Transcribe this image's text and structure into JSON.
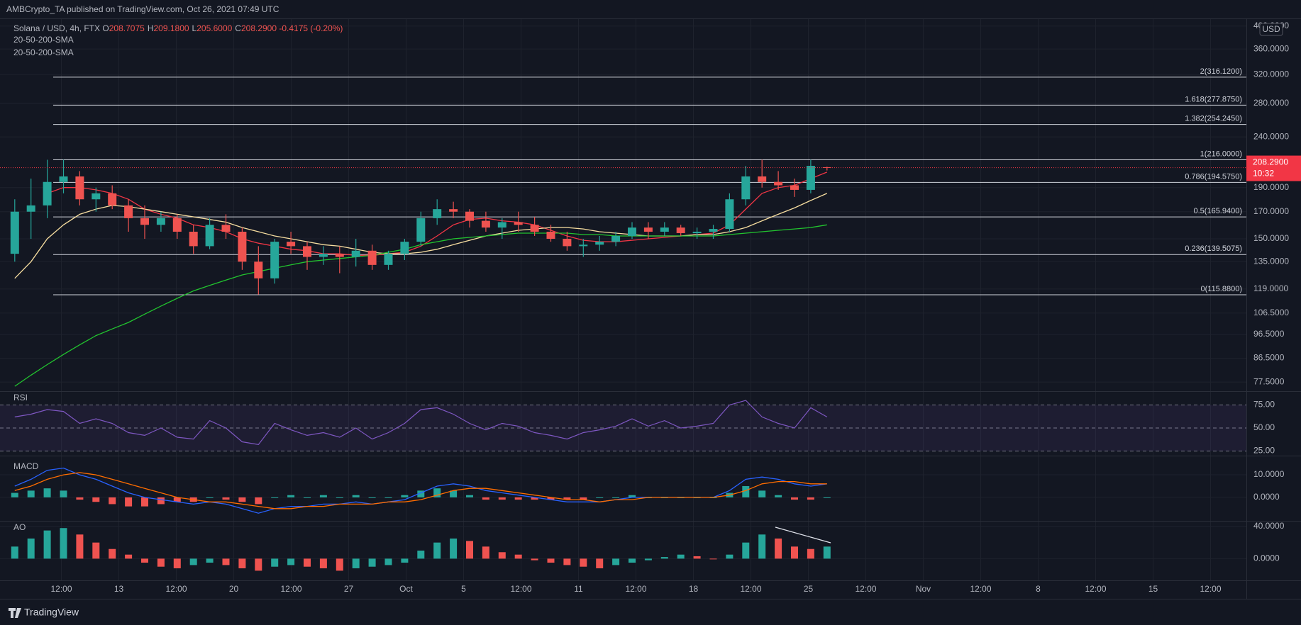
{
  "header": {
    "text": "AMBCrypto_TA published on TradingView.com, Oct 26, 2021 07:49 UTC"
  },
  "chart_data": {
    "type": "candlestick",
    "symbol": "Solana / USD, 4h, FTX",
    "ohlc_legend": [
      "O",
      "208.7075",
      "H",
      "209.1800",
      "L",
      "205.6000",
      "C",
      "208.2900"
    ],
    "change": "-0.4175 (-0.20%)",
    "indicator_legend": [
      "20-50-200-SMA",
      "20-50-200-SMA"
    ],
    "up_color": "#26a69a",
    "down_color": "#ef5350",
    "candles": [
      [
        140,
        180,
        135,
        170
      ],
      [
        170,
        198,
        150,
        175
      ],
      [
        175,
        216,
        165,
        195
      ],
      [
        195,
        216,
        185,
        200
      ],
      [
        200,
        205,
        175,
        180
      ],
      [
        180,
        190,
        170,
        185
      ],
      [
        185,
        192,
        172,
        175
      ],
      [
        175,
        180,
        155,
        165
      ],
      [
        165,
        175,
        150,
        160
      ],
      [
        160,
        170,
        155,
        165
      ],
      [
        165,
        168,
        150,
        155
      ],
      [
        155,
        160,
        140,
        145
      ],
      [
        145,
        165,
        143,
        160
      ],
      [
        160,
        168,
        150,
        155
      ],
      [
        155,
        158,
        130,
        135
      ],
      [
        135,
        145,
        116,
        125
      ],
      [
        125,
        150,
        122,
        148
      ],
      [
        148,
        155,
        140,
        145
      ],
      [
        145,
        148,
        130,
        138
      ],
      [
        138,
        145,
        133,
        140
      ],
      [
        140,
        145,
        128,
        138
      ],
      [
        138,
        150,
        132,
        142
      ],
      [
        142,
        146,
        130,
        133
      ],
      [
        133,
        142,
        130,
        140
      ],
      [
        140,
        150,
        136,
        148
      ],
      [
        148,
        170,
        145,
        165
      ],
      [
        165,
        180,
        160,
        172
      ],
      [
        172,
        178,
        165,
        170
      ],
      [
        170,
        172,
        158,
        163
      ],
      [
        163,
        170,
        155,
        158
      ],
      [
        158,
        165,
        150,
        162
      ],
      [
        162,
        170,
        155,
        160
      ],
      [
        160,
        166,
        152,
        155
      ],
      [
        155,
        160,
        148,
        150
      ],
      [
        150,
        155,
        142,
        145
      ],
      [
        145,
        150,
        138,
        146
      ],
      [
        146,
        152,
        142,
        148
      ],
      [
        148,
        155,
        145,
        152
      ],
      [
        152,
        162,
        150,
        158
      ],
      [
        158,
        162,
        150,
        155
      ],
      [
        155,
        162,
        152,
        158
      ],
      [
        158,
        160,
        152,
        154
      ],
      [
        154,
        158,
        150,
        155
      ],
      [
        155,
        160,
        150,
        157
      ],
      [
        157,
        185,
        155,
        180
      ],
      [
        180,
        210,
        175,
        200
      ],
      [
        200,
        216,
        190,
        195
      ],
      [
        195,
        205,
        188,
        192
      ],
      [
        192,
        198,
        182,
        188
      ],
      [
        188,
        216,
        185,
        210
      ],
      [
        208.7075,
        209.18,
        205.6,
        208.29
      ]
    ],
    "sma": [
      {
        "color": "#f23645",
        "values": [
          null,
          null,
          185,
          190,
          190,
          188,
          185,
          180,
          172,
          168,
          165,
          160,
          158,
          155,
          150,
          147,
          145,
          143,
          142,
          140,
          140,
          139,
          139,
          140,
          141,
          145,
          152,
          160,
          164,
          165,
          163,
          162,
          160,
          156,
          152,
          149,
          148,
          148,
          149,
          150,
          151,
          152,
          153,
          154,
          160,
          172,
          185,
          190,
          192,
          198,
          204
        ]
      },
      {
        "color": "#f7dea0",
        "values": [
          125,
          135,
          150,
          160,
          168,
          172,
          175,
          174,
          172,
          170,
          168,
          166,
          164,
          162,
          158,
          155,
          152,
          150,
          148,
          146,
          145,
          143,
          141,
          140,
          140,
          141,
          143,
          146,
          149,
          152,
          154,
          156,
          157,
          158,
          158,
          157,
          155,
          154,
          153,
          152,
          152,
          152,
          153,
          153,
          155,
          158,
          163,
          168,
          173,
          179,
          185
        ]
      },
      {
        "color": "#22c42f",
        "values": [
          76,
          80,
          84,
          88,
          92,
          96,
          99,
          102,
          106,
          110,
          114,
          118,
          121,
          124,
          127,
          129,
          131,
          133,
          135,
          136,
          137,
          138,
          139,
          141,
          143,
          146,
          148,
          150,
          151,
          152,
          153,
          154,
          154,
          154,
          154,
          153,
          153,
          152,
          152,
          152,
          152,
          152,
          152,
          152,
          153,
          154,
          155,
          156,
          157,
          158,
          160
        ]
      }
    ],
    "log_scale": true,
    "ylim": [
      74.3,
      414.5
    ],
    "yticks": [
      {
        "value": 400,
        "label": "400.0000"
      },
      {
        "value": 360,
        "label": "360.0000"
      },
      {
        "value": 320,
        "label": "320.0000"
      },
      {
        "value": 280,
        "label": "280.0000"
      },
      {
        "value": 240,
        "label": "240.0000"
      },
      {
        "value": 190,
        "label": "190.0000"
      },
      {
        "value": 170,
        "label": "170.0000"
      },
      {
        "value": 150,
        "label": "150.0000"
      },
      {
        "value": 135,
        "label": "135.0000"
      },
      {
        "value": 119,
        "label": "119.0000"
      },
      {
        "value": 106.5,
        "label": "106.5000"
      },
      {
        "value": 96.5,
        "label": "96.5000"
      },
      {
        "value": 86.5,
        "label": "86.5000"
      },
      {
        "value": 77.5,
        "label": "77.5000"
      }
    ],
    "grid": true,
    "currency": "USD",
    "last_price": {
      "value": 208.29,
      "label": "208.2900"
    },
    "countdown": "10:32",
    "fib_levels": [
      {
        "value": 316.12,
        "label": "2(316.1200)"
      },
      {
        "value": 277.875,
        "label": "1.618(277.8750)"
      },
      {
        "value": 254.245,
        "label": "1.382(254.2450)"
      },
      {
        "value": 216,
        "label": "1(216.0000)"
      },
      {
        "value": 194.575,
        "label": "0.786(194.5750)"
      },
      {
        "value": 165.94,
        "label": "0.5(165.9400)"
      },
      {
        "value": 139.5075,
        "label": "0.236(139.5075)"
      },
      {
        "value": 115.88,
        "label": "0(115.8800)"
      }
    ],
    "x_labels": [
      "12:00",
      "13",
      "12:00",
      "20",
      "12:00",
      "27",
      "Oct",
      "5",
      "12:00",
      "11",
      "12:00",
      "18",
      "12:00",
      "25",
      "12:00",
      "Nov",
      "12:00",
      "8",
      "12:00",
      "15",
      "12:00"
    ],
    "rsi": {
      "title": "RSI",
      "color": "#7e57c2",
      "values": [
        62,
        65,
        70,
        68,
        55,
        60,
        55,
        45,
        42,
        50,
        40,
        38,
        58,
        50,
        35,
        32,
        55,
        48,
        42,
        45,
        40,
        50,
        38,
        45,
        55,
        70,
        72,
        65,
        55,
        48,
        55,
        52,
        45,
        42,
        38,
        45,
        48,
        52,
        60,
        52,
        58,
        50,
        52,
        55,
        75,
        80,
        62,
        55,
        50,
        72,
        62
      ],
      "ylim": [
        20,
        90
      ],
      "yticks": [
        {
          "value": 75,
          "label": "75.00"
        },
        {
          "value": 50,
          "label": "50.00"
        },
        {
          "value": 25,
          "label": "25.00"
        }
      ]
    },
    "macd": {
      "title": "MACD",
      "series": [
        {
          "color": "#2962ff",
          "values": [
            5,
            8,
            12,
            13,
            10,
            8,
            5,
            2,
            0,
            -1,
            -2,
            -3,
            -2,
            -3,
            -5,
            -7,
            -5,
            -4,
            -4,
            -3,
            -3,
            -2,
            -3,
            -2,
            -1,
            2,
            5,
            6,
            5,
            3,
            2,
            1,
            0,
            -1,
            -2,
            -2,
            -2,
            -1,
            0,
            0,
            0,
            0,
            0,
            0,
            3,
            8,
            9,
            8,
            6,
            5,
            6
          ]
        },
        {
          "color": "#ff6d00",
          "values": [
            3,
            5,
            8,
            10,
            11,
            10,
            8,
            6,
            4,
            2,
            0,
            -1,
            -2,
            -2,
            -3,
            -4,
            -5,
            -5,
            -4,
            -4,
            -3,
            -3,
            -3,
            -2,
            -2,
            -1,
            1,
            3,
            4,
            4,
            3,
            2,
            1,
            0,
            -1,
            -1,
            -2,
            -1,
            -1,
            0,
            0,
            0,
            0,
            0,
            1,
            3,
            6,
            7,
            7,
            6,
            6
          ]
        }
      ],
      "histogram": [
        2,
        3,
        4,
        3,
        -1,
        -2,
        -3,
        -4,
        -4,
        -3,
        -2,
        -2,
        0,
        -1,
        -2,
        -3,
        0,
        1,
        0,
        1,
        0,
        1,
        0,
        0,
        1,
        3,
        4,
        3,
        1,
        -1,
        -1,
        -1,
        -1,
        -1,
        -1,
        -1,
        0,
        0,
        1,
        0,
        0,
        0,
        0,
        0,
        2,
        5,
        3,
        1,
        -1,
        -1,
        0
      ],
      "ylim": [
        -10.4,
        18.5
      ],
      "yticks": [
        {
          "value": 10,
          "label": "10.0000"
        },
        {
          "value": 0,
          "label": "0.0000"
        }
      ]
    },
    "ao": {
      "title": "AO",
      "values": [
        15,
        25,
        35,
        38,
        30,
        20,
        12,
        5,
        -5,
        -10,
        -12,
        -8,
        -5,
        -8,
        -12,
        -15,
        -10,
        -8,
        -10,
        -12,
        -15,
        -12,
        -10,
        -8,
        -5,
        10,
        20,
        25,
        22,
        15,
        8,
        5,
        -2,
        -5,
        -8,
        -10,
        -12,
        -8,
        -5,
        -2,
        2,
        5,
        3,
        0,
        5,
        20,
        30,
        25,
        15,
        12,
        15
      ],
      "ylim": [
        -27,
        47
      ],
      "yticks": [
        {
          "value": 40,
          "label": "40.0000"
        },
        {
          "value": 0,
          "label": "0.0000"
        }
      ]
    }
  },
  "footer": {
    "brand": "TradingView"
  }
}
